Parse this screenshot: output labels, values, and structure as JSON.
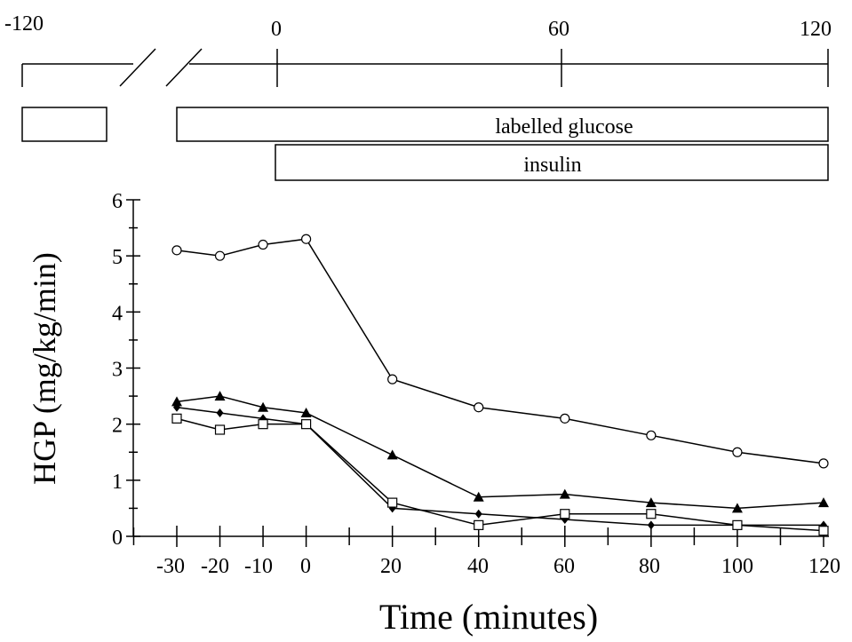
{
  "timeline": {
    "labels": [
      "-120",
      "0",
      "60",
      "120"
    ]
  },
  "bars": {
    "labelled_glucose": "labelled glucose",
    "insulin": "insulin"
  },
  "chart_data": {
    "type": "line",
    "ylabel": "HGP (mg/kg/min)",
    "xlabel": "Time (minutes)",
    "x": [
      -30,
      -20,
      -10,
      0,
      20,
      40,
      60,
      80,
      100,
      120
    ],
    "x_tick_labels": [
      "-30",
      "-20",
      "-10",
      "0",
      "20",
      "40",
      "60",
      "80",
      "100",
      "120"
    ],
    "y_tick_labels": [
      "0",
      "1",
      "2",
      "3",
      "4",
      "5",
      "6"
    ],
    "xlim": [
      -40,
      125
    ],
    "ylim": [
      0,
      6
    ],
    "grid": false,
    "series": [
      {
        "marker": "open-circle",
        "values": [
          5.1,
          5.0,
          5.2,
          5.3,
          2.8,
          2.3,
          2.1,
          1.8,
          1.5,
          1.3
        ]
      },
      {
        "marker": "filled-triangle",
        "values": [
          2.4,
          2.5,
          2.3,
          2.2,
          1.45,
          0.7,
          0.75,
          0.6,
          0.5,
          0.6
        ]
      },
      {
        "marker": "filled-diamond",
        "values": [
          2.3,
          2.2,
          2.1,
          2.0,
          0.5,
          0.4,
          0.3,
          0.2,
          0.2,
          0.2
        ]
      },
      {
        "marker": "open-square",
        "values": [
          2.1,
          1.9,
          2.0,
          2.0,
          0.6,
          0.2,
          0.4,
          0.4,
          0.2,
          0.1
        ]
      }
    ]
  }
}
